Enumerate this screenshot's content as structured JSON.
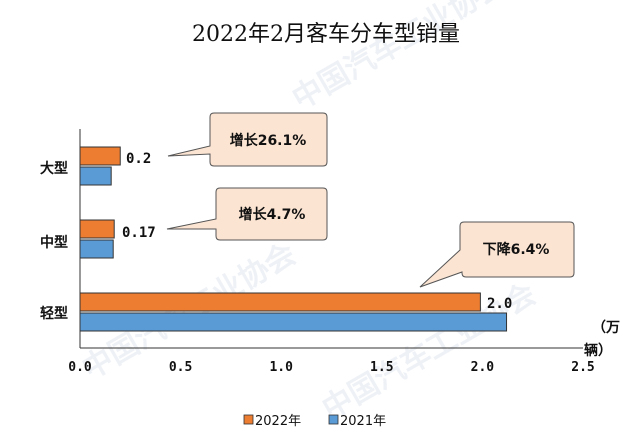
{
  "chart_data": {
    "type": "bar",
    "orientation": "horizontal",
    "title": "2022年2月客车分车型销量",
    "categories": [
      "大型",
      "中型",
      "轻型"
    ],
    "series": [
      {
        "name": "2022年",
        "color": "#ED7D31",
        "values": [
          0.2,
          0.17,
          1.99
        ]
      },
      {
        "name": "2021年",
        "color": "#5B9BD5",
        "values": [
          0.155,
          0.165,
          2.12
        ]
      }
    ],
    "data_labels": [
      "0.2",
      "0.17",
      "2.0"
    ],
    "xlim": [
      0,
      2.5
    ],
    "xticks": [
      "0.0",
      "0.5",
      "1.0",
      "1.5",
      "2.0",
      "2.5"
    ],
    "xticks_values": [
      0,
      0.5,
      1.0,
      1.5,
      2.0,
      2.5
    ],
    "unit_label": [
      "（万",
      "辆）"
    ],
    "callouts": [
      "增长26.1%",
      "增长4.7%",
      "下降6.4%"
    ],
    "legend": [
      "2022年",
      "2021年"
    ],
    "legend_position": "bottom",
    "watermark_text": "中国汽车工业协会"
  }
}
